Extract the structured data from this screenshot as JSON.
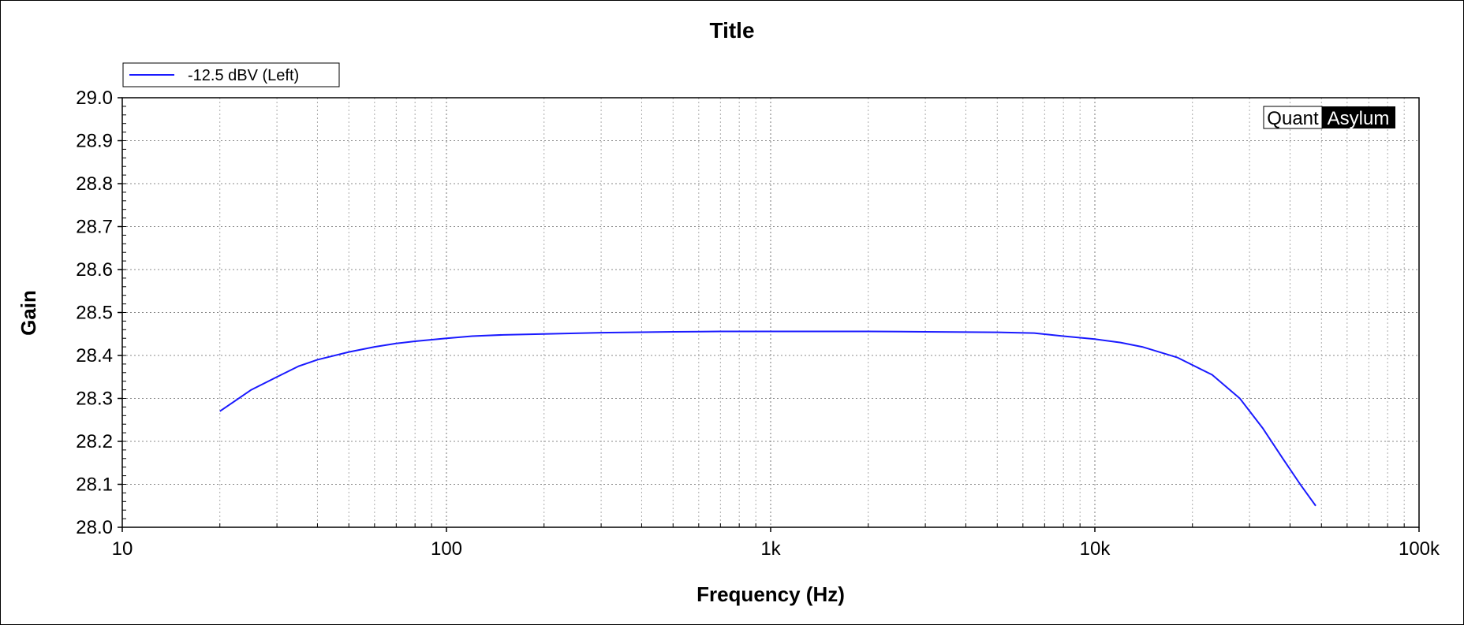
{
  "chart_data": {
    "type": "line",
    "title": "Title",
    "xlabel": "Frequency (Hz)",
    "ylabel": "Gain",
    "xscale": "log",
    "xlim": [
      10,
      100000
    ],
    "ylim": [
      28.0,
      29.0
    ],
    "grid": true,
    "legend_position": "top-left",
    "x_ticks": [
      {
        "value": 10,
        "label": "10"
      },
      {
        "value": 100,
        "label": "100"
      },
      {
        "value": 1000,
        "label": "1k"
      },
      {
        "value": 10000,
        "label": "10k"
      },
      {
        "value": 100000,
        "label": "100k"
      }
    ],
    "y_ticks": [
      {
        "value": 28.0,
        "label": "28.0"
      },
      {
        "value": 28.1,
        "label": "28.1"
      },
      {
        "value": 28.2,
        "label": "28.2"
      },
      {
        "value": 28.3,
        "label": "28.3"
      },
      {
        "value": 28.4,
        "label": "28.4"
      },
      {
        "value": 28.5,
        "label": "28.5"
      },
      {
        "value": 28.6,
        "label": "28.6"
      },
      {
        "value": 28.7,
        "label": "28.7"
      },
      {
        "value": 28.8,
        "label": "28.8"
      },
      {
        "value": 28.9,
        "label": "28.9"
      },
      {
        "value": 29.0,
        "label": "29.0"
      }
    ],
    "series": [
      {
        "name": "-12.5 dBV (Left)",
        "color": "#1a1aff",
        "x": [
          20,
          25,
          30,
          35,
          40,
          50,
          60,
          70,
          80,
          100,
          120,
          150,
          200,
          300,
          500,
          700,
          1000,
          2000,
          3000,
          5000,
          6500,
          8000,
          10000,
          12000,
          14000,
          18000,
          23000,
          28000,
          33000,
          38000,
          43000,
          48000
        ],
        "values": [
          28.27,
          28.32,
          28.35,
          28.375,
          28.39,
          28.408,
          28.42,
          28.428,
          28.433,
          28.44,
          28.445,
          28.448,
          28.45,
          28.453,
          28.455,
          28.456,
          28.456,
          28.456,
          28.455,
          28.454,
          28.452,
          28.445,
          28.438,
          28.43,
          28.42,
          28.395,
          28.355,
          28.3,
          28.23,
          28.16,
          28.1,
          28.05
        ]
      }
    ]
  },
  "logo": {
    "part1": "Quant",
    "part2": "Asylum"
  }
}
